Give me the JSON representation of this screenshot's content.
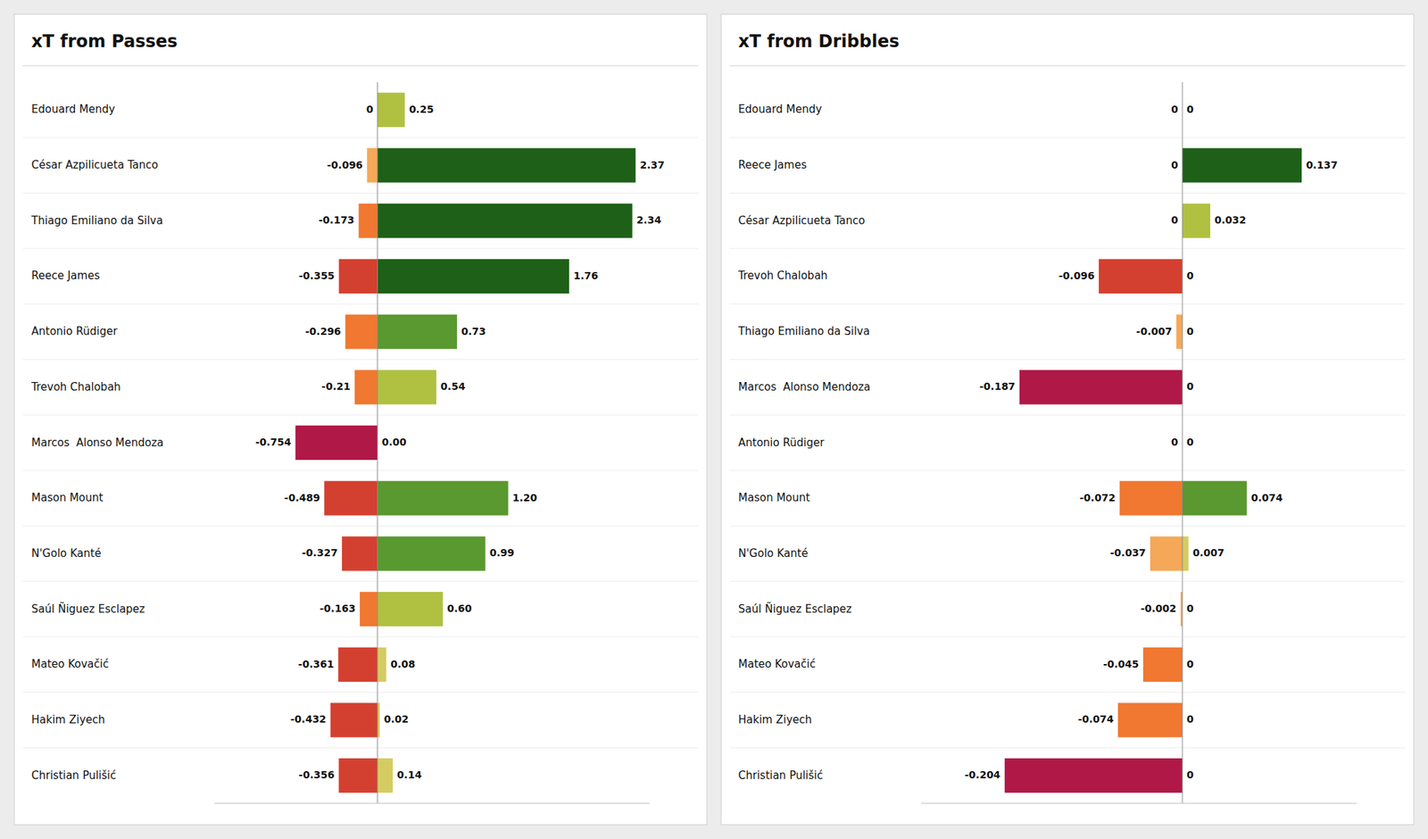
{
  "chart_data": [
    {
      "type": "bar",
      "orientation": "horizontal",
      "stacked": true,
      "data_labels": true,
      "grid": false,
      "tick_labels": false,
      "title": "xT from Passes",
      "categories": [
        "Edouard Mendy",
        "César Azpilicueta Tanco",
        "Thiago Emiliano da Silva",
        "Reece James",
        "Antonio Rüdiger",
        "Trevoh Chalobah",
        "Marcos  Alonso Mendoza",
        "Mason Mount",
        "N'Golo Kanté",
        "Saúl Ñiguez Esclapez",
        "Mateo Kovačić",
        "Hakim Ziyech",
        "Christian Pulišić"
      ],
      "xlim": [
        -1.5,
        2.5
      ],
      "series": [
        {
          "values": [
            0,
            -0.096,
            -0.173,
            -0.355,
            -0.296,
            -0.21,
            -0.754,
            -0.489,
            -0.327,
            -0.163,
            -0.361,
            -0.432,
            -0.356
          ],
          "value_labels": [
            "0",
            "-0.096",
            "-0.173",
            "-0.355",
            "-0.296",
            "-0.21",
            "-0.754",
            "-0.489",
            "-0.327",
            "-0.163",
            "-0.361",
            "-0.432",
            "-0.356"
          ],
          "colors": [
            "#f5a857",
            "#f5a857",
            "#f07830",
            "#d44030",
            "#f07830",
            "#f07830",
            "#b01848",
            "#d44030",
            "#d44030",
            "#f07830",
            "#d44030",
            "#d44030",
            "#d44030"
          ]
        },
        {
          "values": [
            0.25,
            2.37,
            2.34,
            1.76,
            0.73,
            0.54,
            0.0,
            1.2,
            0.99,
            0.6,
            0.08,
            0.02,
            0.14
          ],
          "value_labels": [
            "0.25",
            "2.37",
            "2.34",
            "1.76",
            "0.73",
            "0.54",
            "0.00",
            "1.20",
            "0.99",
            "0.60",
            "0.08",
            "0.02",
            "0.14"
          ],
          "colors": [
            "#b0c040",
            "#1e6018",
            "#1e6018",
            "#1e6018",
            "#5a9830",
            "#b0c040",
            "#d4cc60",
            "#5a9830",
            "#5a9830",
            "#b0c040",
            "#d4cc60",
            "#d4cc60",
            "#d4cc60"
          ]
        }
      ]
    },
    {
      "type": "bar",
      "orientation": "horizontal",
      "stacked": true,
      "data_labels": true,
      "grid": false,
      "tick_labels": false,
      "title": "xT from Dribbles",
      "categories": [
        "Edouard Mendy",
        "Reece James",
        "César Azpilicueta Tanco",
        "Trevoh Chalobah",
        "Thiago Emiliano da Silva",
        "Marcos  Alonso Mendoza",
        "Antonio Rüdiger",
        "Mason Mount",
        "N'Golo Kanté",
        "Saúl Ñiguez Esclapez",
        "Mateo Kovačić",
        "Hakim Ziyech",
        "Christian Pulišić"
      ],
      "xlim": [
        -0.3,
        0.2
      ],
      "series": [
        {
          "values": [
            0,
            0,
            0,
            -0.096,
            -0.007,
            -0.187,
            0,
            -0.072,
            -0.037,
            -0.002,
            -0.045,
            -0.074,
            -0.204
          ],
          "value_labels": [
            "0",
            "0",
            "0",
            "-0.096",
            "-0.007",
            "-0.187",
            "0",
            "-0.072",
            "-0.037",
            "-0.002",
            "-0.045",
            "-0.074",
            "-0.204"
          ],
          "colors": [
            "#f5a857",
            "#f5a857",
            "#f5a857",
            "#d44030",
            "#f5a857",
            "#b01848",
            "#f5a857",
            "#f07830",
            "#f5a857",
            "#f5a857",
            "#f07830",
            "#f07830",
            "#b01848"
          ]
        },
        {
          "values": [
            0,
            0.137,
            0.032,
            0,
            0,
            0,
            0,
            0.074,
            0.007,
            0,
            0,
            0,
            0
          ],
          "value_labels": [
            "0",
            "0.137",
            "0.032",
            "0",
            "0",
            "0",
            "0",
            "0.074",
            "0.007",
            "0",
            "0",
            "0",
            "0"
          ],
          "colors": [
            "#d4cc60",
            "#1e6018",
            "#b0c040",
            "#d4cc60",
            "#d4cc60",
            "#d4cc60",
            "#d4cc60",
            "#5a9830",
            "#d4cc60",
            "#d4cc60",
            "#d4cc60",
            "#d4cc60",
            "#d4cc60"
          ]
        }
      ]
    }
  ]
}
